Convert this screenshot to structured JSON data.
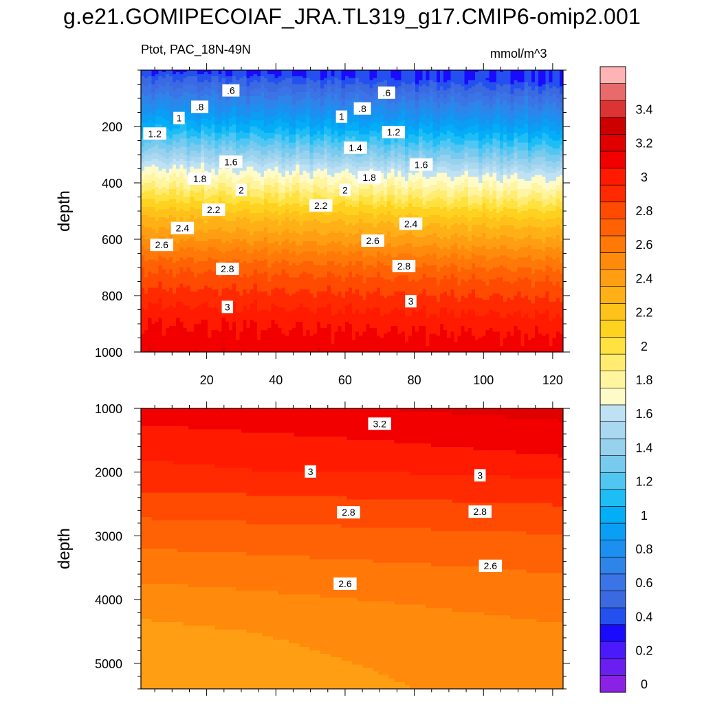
{
  "title": "g.e21.GOMIPECOIAF_JRA.TL319_g17.CMIP6-omip2.001",
  "subtitle": "Ptot, PAC_18N-49N",
  "units": "mmol/m^3",
  "chart_data": {
    "type": "contour",
    "variable": "Ptot",
    "region": "PAC_18N-49N",
    "colorbar": {
      "levels": [
        0,
        0.1,
        0.2,
        0.3,
        0.4,
        0.5,
        0.6,
        0.7,
        0.8,
        0.9,
        1.0,
        1.1,
        1.2,
        1.3,
        1.4,
        1.5,
        1.6,
        1.7,
        1.8,
        1.9,
        2.0,
        2.1,
        2.2,
        2.3,
        2.4,
        2.5,
        2.6,
        2.7,
        2.8,
        2.9,
        3.0,
        3.1,
        3.2,
        3.3,
        3.4,
        3.5,
        3.6
      ],
      "tick_labels": [
        "0",
        "0.2",
        "0.4",
        "0.6",
        "0.8",
        "1",
        "1.2",
        "1.4",
        "1.6",
        "1.8",
        "2",
        "2.2",
        "2.4",
        "2.6",
        "2.8",
        "3",
        "3.2",
        "3.4"
      ],
      "colors": [
        "#8c21e6",
        "#6a1ef0",
        "#4a1afa",
        "#1a0aff",
        "#2450f0",
        "#3b6ae0",
        "#3a74e6",
        "#2f84ea",
        "#1b90f0",
        "#0a9ef5",
        "#04adf7",
        "#1ebdf5",
        "#52c6f2",
        "#78caee",
        "#96d1ee",
        "#a9d8f0",
        "#bee2f3",
        "#fffbc8",
        "#fff4a0",
        "#ffec70",
        "#ffe140",
        "#ffd21f",
        "#ffc21b",
        "#ffb017",
        "#ff9e12",
        "#ff8a0c",
        "#ff7808",
        "#ff6204",
        "#ff4a02",
        "#ff2a00",
        "#ff1a00",
        "#f20000",
        "#e00000",
        "#cc0000",
        "#dc3333",
        "#e86a6a",
        "#ffb4b4"
      ]
    },
    "panels": [
      {
        "name": "upper",
        "ylabel": "depth",
        "ylim": [
          0,
          1000
        ],
        "y_reversed": true,
        "xlim": [
          1,
          123
        ],
        "x_ticks": [
          20,
          40,
          60,
          80,
          100,
          120
        ],
        "y_ticks": [
          200,
          400,
          600,
          800,
          1000
        ],
        "contour_labels": [
          {
            "text": ".6",
            "x": 27,
            "y": 72
          },
          {
            "text": ".6",
            "x": 72,
            "y": 80
          },
          {
            "text": ".8",
            "x": 18,
            "y": 130
          },
          {
            "text": ".8",
            "x": 65,
            "y": 136
          },
          {
            "text": "1",
            "x": 12,
            "y": 170
          },
          {
            "text": "1",
            "x": 59,
            "y": 165
          },
          {
            "text": "1.2",
            "x": 5,
            "y": 225
          },
          {
            "text": "1.2",
            "x": 74,
            "y": 220
          },
          {
            "text": "1.4",
            "x": 63,
            "y": 275
          },
          {
            "text": "1.6",
            "x": 27,
            "y": 325
          },
          {
            "text": "1.6",
            "x": 82,
            "y": 335
          },
          {
            "text": "1.8",
            "x": 18,
            "y": 385
          },
          {
            "text": "1.8",
            "x": 67,
            "y": 380
          },
          {
            "text": "2",
            "x": 30,
            "y": 425
          },
          {
            "text": "2",
            "x": 60,
            "y": 425
          },
          {
            "text": "2.2",
            "x": 22,
            "y": 495
          },
          {
            "text": "2.2",
            "x": 53,
            "y": 480
          },
          {
            "text": "2.4",
            "x": 13,
            "y": 560
          },
          {
            "text": "2.4",
            "x": 79,
            "y": 545
          },
          {
            "text": "2.6",
            "x": 7,
            "y": 620
          },
          {
            "text": "2.6",
            "x": 68,
            "y": 605
          },
          {
            "text": "2.8",
            "x": 26,
            "y": 705
          },
          {
            "text": "2.8",
            "x": 77,
            "y": 695
          },
          {
            "text": "3",
            "x": 26,
            "y": 840
          },
          {
            "text": "3",
            "x": 79,
            "y": 820
          }
        ]
      },
      {
        "name": "lower",
        "ylabel": "depth",
        "ylim": [
          1000,
          5400
        ],
        "y_reversed": true,
        "xlim": [
          1,
          123
        ],
        "x_ticks": [
          20,
          40,
          60,
          80,
          100,
          120
        ],
        "y_ticks": [
          1000,
          2000,
          3000,
          4000,
          5000
        ],
        "contour_labels": [
          {
            "text": "3.2",
            "x": 70,
            "y": 1240
          },
          {
            "text": "3",
            "x": 50,
            "y": 1990
          },
          {
            "text": "3",
            "x": 99,
            "y": 2050
          },
          {
            "text": "2.8",
            "x": 61,
            "y": 2630
          },
          {
            "text": "2.8",
            "x": 99,
            "y": 2620
          },
          {
            "text": "2.6",
            "x": 60,
            "y": 3750
          },
          {
            "text": "2.6",
            "x": 102,
            "y": 3470
          }
        ]
      }
    ]
  }
}
